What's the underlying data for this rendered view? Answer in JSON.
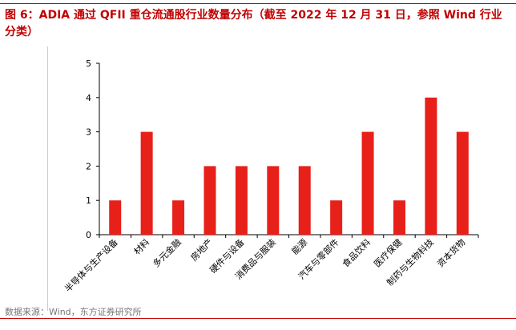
{
  "title": "图 6：ADIA 通过 QFII 重仓流通股行业数量分布（截至 2022 年 12 月 31 日，参照 Wind 行业分类）",
  "source": "数据来源：Wind，东方证券研究所",
  "colors": {
    "accent": "#c00000",
    "bar": "#e8201a",
    "axis": "#000000",
    "source_text": "#777777"
  },
  "chart_data": {
    "type": "bar",
    "categories": [
      "半导体与生产设备",
      "材料",
      "多元金融",
      "房地产",
      "硬件与设备",
      "消费品与服装",
      "能源",
      "汽车与零部件",
      "食品饮料",
      "医疗保健",
      "制药与生物科技",
      "资本货物"
    ],
    "values": [
      1,
      3,
      1,
      2,
      2,
      2,
      2,
      1,
      3,
      1,
      4,
      3
    ],
    "yticks": [
      0,
      1,
      2,
      3,
      4,
      5
    ],
    "ylim": [
      0,
      5
    ],
    "xlabel": "",
    "ylabel": "",
    "grid": false,
    "legend": "none"
  }
}
